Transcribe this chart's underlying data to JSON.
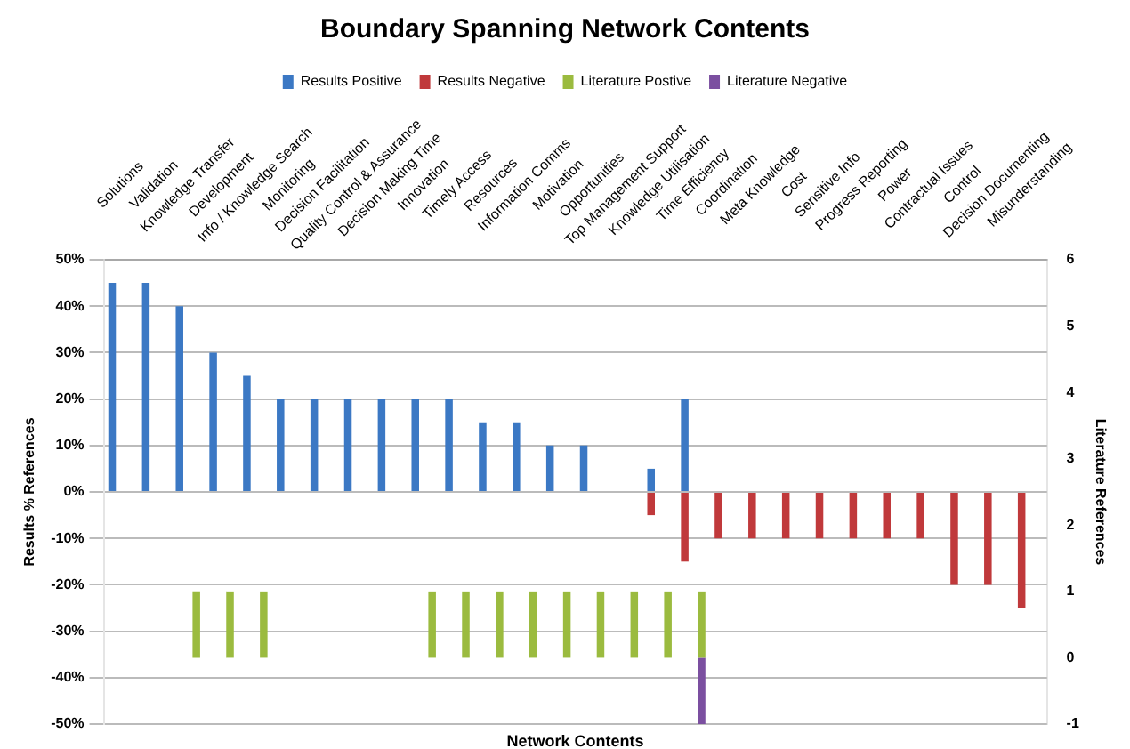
{
  "chart_data": {
    "type": "bar",
    "title": "Boundary Spanning Network Contents",
    "xlabel": "Network Contents",
    "ylabel": "Results % References",
    "y2label": "Literature References",
    "categories": [
      "Solutions",
      "Validation",
      "Knowledge Transfer",
      "Development",
      "Info / Knowledge Search",
      "Monitoring",
      "Decision Facilitation",
      "Quality Control & Assurance",
      "Decision Making Time",
      "Innovation",
      "Timely Access",
      "Resources",
      "Information Comms",
      "Motivation",
      "Opportunities",
      "Top Management Support",
      "Knowledge Utilisation",
      "Time Efficiency",
      "Coordination",
      "Meta Knowledge",
      "Cost",
      "Sensitive Info",
      "Progress Reporting",
      "Power",
      "Contractual Issues",
      "Control",
      "Decision Documenting",
      "Misunderstanding"
    ],
    "series": [
      {
        "name": "Results Positive",
        "color": "#3b78c4",
        "values": [
          45,
          45,
          40,
          30,
          25,
          20,
          20,
          20,
          20,
          20,
          20,
          15,
          15,
          10,
          10,
          null,
          5,
          20,
          null,
          null,
          null,
          null,
          null,
          null,
          null,
          null,
          null,
          null
        ]
      },
      {
        "name": "Results Negative",
        "color": "#c0393b",
        "values": [
          null,
          null,
          null,
          null,
          null,
          null,
          null,
          null,
          null,
          null,
          null,
          null,
          null,
          null,
          null,
          null,
          -5,
          -15,
          -10,
          -10,
          -10,
          -10,
          -10,
          -10,
          -10,
          -20,
          -20,
          -25
        ]
      },
      {
        "name": "Literature Postive",
        "color": "#9bbb3f",
        "axis": "y2",
        "values": [
          null,
          null,
          1,
          1,
          1,
          null,
          null,
          null,
          null,
          1,
          1,
          1,
          1,
          1,
          1,
          1,
          1,
          1,
          null,
          null,
          null,
          null,
          null,
          null,
          null,
          null,
          null,
          null
        ]
      },
      {
        "name": "Literature Negative",
        "color": "#7b4fa0",
        "axis": "y2",
        "values": [
          null,
          null,
          null,
          null,
          null,
          null,
          null,
          null,
          null,
          null,
          null,
          null,
          null,
          null,
          null,
          null,
          null,
          -1,
          null,
          null,
          null,
          null,
          null,
          null,
          null,
          null,
          null,
          null
        ]
      }
    ],
    "ylim": [
      -50,
      50
    ],
    "yticks": [
      {
        "value": -50,
        "label": "-50%"
      },
      {
        "value": -40,
        "label": "-40%"
      },
      {
        "value": -30,
        "label": "-30%"
      },
      {
        "value": -20,
        "label": "-20%"
      },
      {
        "value": -10,
        "label": "-10%"
      },
      {
        "value": 0,
        "label": "0%"
      },
      {
        "value": 10,
        "label": "10%"
      },
      {
        "value": 20,
        "label": "20%"
      },
      {
        "value": 30,
        "label": "30%"
      },
      {
        "value": 40,
        "label": "40%"
      },
      {
        "value": 50,
        "label": "50%"
      }
    ],
    "y2lim": [
      -1,
      6
    ],
    "y2ticks": [
      -1,
      0,
      1,
      2,
      3,
      4,
      5,
      6
    ],
    "grid": "y",
    "legend": "top"
  }
}
